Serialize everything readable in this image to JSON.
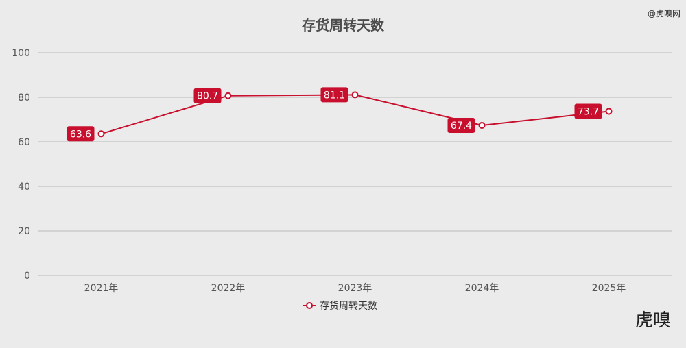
{
  "watermark": "@虎嗅网",
  "logo_text": "虎嗅",
  "chart_data": {
    "type": "line",
    "title": "存货周转天数",
    "categories": [
      "2021年",
      "2022年",
      "2023年",
      "2024年",
      "2025年"
    ],
    "series": [
      {
        "name": "存货周转天数",
        "values": [
          63.6,
          80.7,
          81.1,
          67.4,
          73.7
        ],
        "labels": [
          "63.6",
          "80.7",
          "81.1",
          "67.4",
          "73.7"
        ],
        "color": "#c8102e"
      }
    ],
    "ylim": [
      0,
      100
    ],
    "yticks": [
      "0",
      "20",
      "40",
      "60",
      "80",
      "100"
    ],
    "grid": true,
    "legend": "bottom-center"
  }
}
